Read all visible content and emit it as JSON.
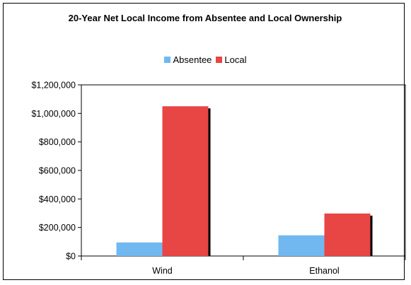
{
  "chart_data": {
    "type": "bar",
    "title": "20-Year Net Local Income from Absentee and Local Ownership",
    "categories": [
      "Wind",
      "Ethanol"
    ],
    "series": [
      {
        "name": "Absentee",
        "color": "#72B8F0",
        "values": [
          95000,
          145000
        ]
      },
      {
        "name": "Local",
        "color": "#E84545",
        "values": [
          1050000,
          298000
        ]
      }
    ],
    "xlabel": "",
    "ylabel": "",
    "ylim": [
      0,
      1200000
    ],
    "yticks": [
      0,
      200000,
      400000,
      600000,
      800000,
      1000000,
      1200000
    ],
    "ytick_labels": [
      "$0",
      "$200,000",
      "$400,000",
      "$600,000",
      "$800,000",
      "$1,000,000",
      "$1,200,000"
    ],
    "legend_position": "top",
    "grid": false
  }
}
